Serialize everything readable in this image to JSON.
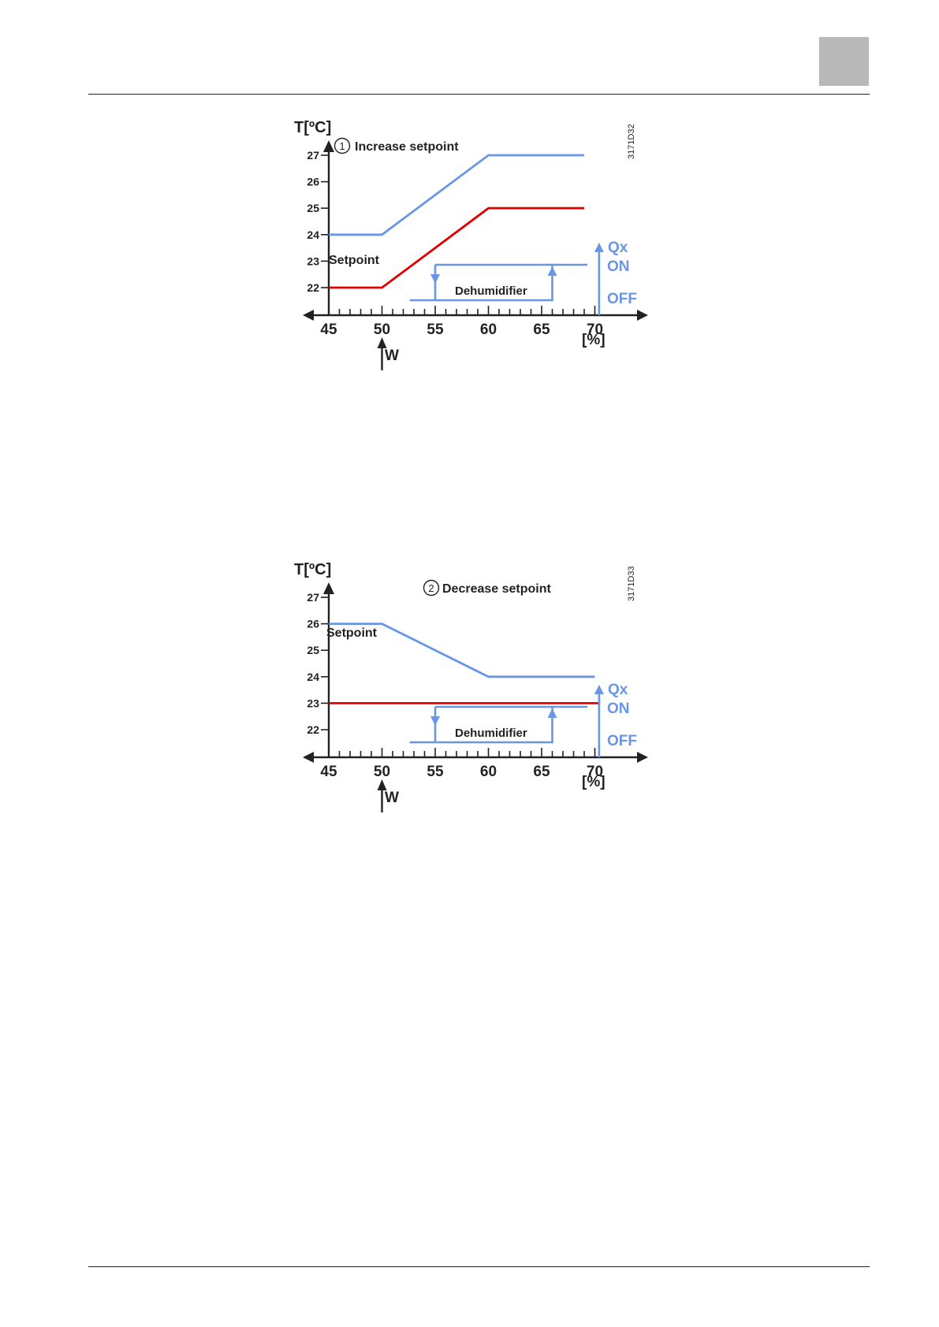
{
  "page": {
    "accent_tab_color": "#b8b8b8"
  },
  "figures": [
    {
      "figure_id": "3171D32",
      "caption_num": "1",
      "caption": "Increase setpoint",
      "y_axis_label": "T[ºC]",
      "x_unit_label": "[%]",
      "setpoint_label": "Setpoint",
      "dehumidifier_label": "Dehumidifier",
      "w_label": "W",
      "qx_label": "Qx",
      "on_label": "ON",
      "off_label": "OFF"
    },
    {
      "figure_id": "3171D33",
      "caption_num": "2",
      "caption": "Decrease setpoint",
      "y_axis_label": "T[ºC]",
      "x_unit_label": "[%]",
      "setpoint_label": "Setpoint",
      "dehumidifier_label": "Dehumidifier",
      "w_label": "W",
      "qx_label": "Qx",
      "on_label": "ON",
      "off_label": "OFF"
    }
  ],
  "chart_data": [
    {
      "type": "line",
      "title": "Increase setpoint",
      "xlabel": "[%]",
      "ylabel": "T[ºC]",
      "xlim": [
        45,
        70
      ],
      "ylim": [
        22,
        27
      ],
      "x_ticks": [
        45,
        50,
        55,
        60,
        65,
        70
      ],
      "y_ticks": [
        22,
        23,
        24,
        25,
        26,
        27
      ],
      "grid": false,
      "series": [
        {
          "color": "#6a96e6",
          "x": [
            45,
            50,
            60,
            69
          ],
          "y": [
            24,
            24,
            27,
            27
          ]
        },
        {
          "color": "#e10000",
          "x": [
            45,
            50,
            60,
            69
          ],
          "y": [
            22,
            22,
            25,
            25
          ]
        }
      ],
      "dehumidifier_hysteresis": {
        "off_below": 55,
        "on_above": 66,
        "state_values": [
          "OFF",
          "ON"
        ]
      },
      "w_marker_x": 50
    },
    {
      "type": "line",
      "title": "Decrease setpoint",
      "xlabel": "[%]",
      "ylabel": "T[ºC]",
      "xlim": [
        45,
        70
      ],
      "ylim": [
        22,
        27
      ],
      "x_ticks": [
        45,
        50,
        55,
        60,
        65,
        70
      ],
      "y_ticks": [
        22,
        23,
        24,
        25,
        26,
        27
      ],
      "grid": false,
      "series": [
        {
          "color": "#6a96e6",
          "x": [
            45,
            50,
            60,
            70
          ],
          "y": [
            26,
            26,
            24,
            24
          ]
        },
        {
          "color": "#e10000",
          "x": [
            45,
            70.5
          ],
          "y": [
            23,
            23
          ]
        }
      ],
      "dehumidifier_hysteresis": {
        "off_below": 55,
        "on_above": 66,
        "state_values": [
          "OFF",
          "ON"
        ]
      },
      "w_marker_x": 50
    }
  ]
}
